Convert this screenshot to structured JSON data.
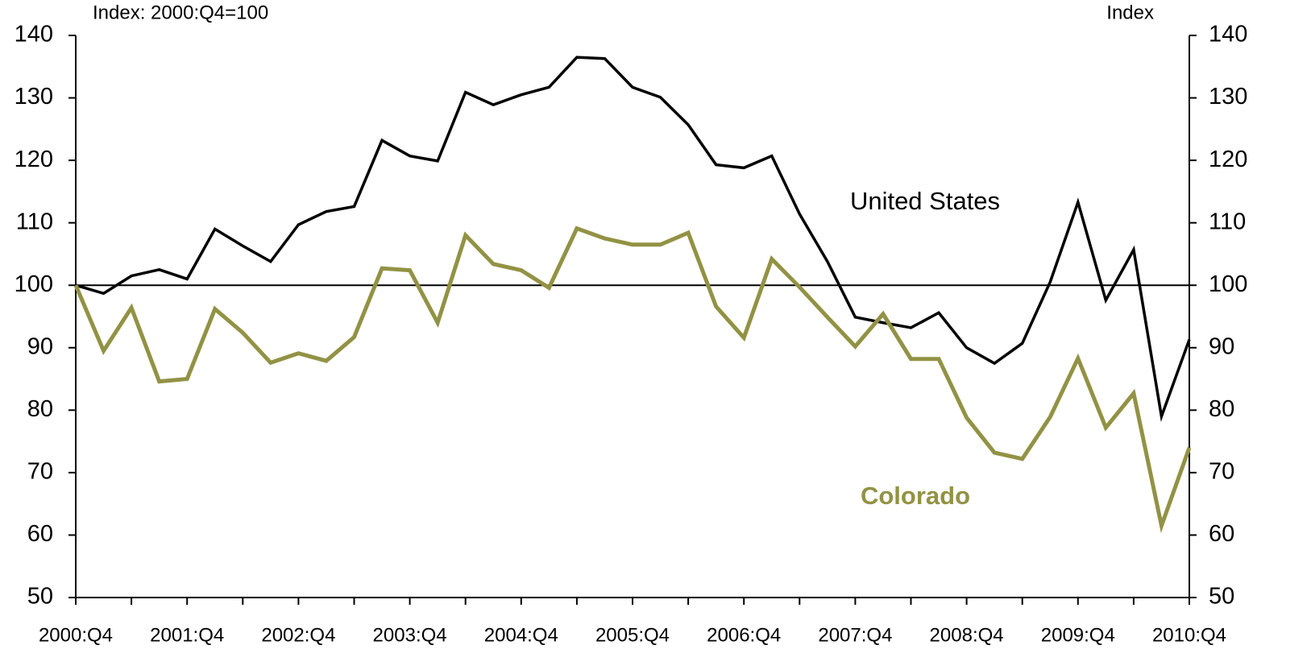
{
  "chart_data": {
    "type": "line",
    "y_label": "Index: 2000:Q4=100",
    "y2_label": "Index",
    "categories": [
      "2000:Q4",
      null,
      null,
      null,
      "2001:Q4",
      null,
      null,
      null,
      "2002:Q4",
      null,
      null,
      null,
      "2003:Q4",
      null,
      null,
      null,
      "2004:Q4",
      null,
      null,
      null,
      "2005:Q4",
      null,
      null,
      null,
      "2006:Q4",
      null,
      null,
      null,
      "2007:Q4",
      null,
      null,
      null,
      "2008:Q4",
      null,
      null,
      null,
      "2009:Q4",
      null,
      null,
      null,
      "2010:Q4"
    ],
    "series": [
      {
        "name": "United States",
        "color": "#000000",
        "width": 3.5,
        "values": [
          100,
          98.7,
          101.5,
          102.5,
          101,
          109,
          106.3,
          103.8,
          109.7,
          111.8,
          112.6,
          123.2,
          120.7,
          119.9,
          130.9,
          128.9,
          130.5,
          131.7,
          136.5,
          136.3,
          131.7,
          130.1,
          125.7,
          119.3,
          118.8,
          120.7,
          111.4,
          103.8,
          94.9,
          94,
          93.2,
          95.6,
          90,
          87.5,
          90.7,
          100.5,
          113.3,
          97.6,
          105.7,
          79,
          91.3
        ]
      },
      {
        "name": "Colorado",
        "color": "#929245",
        "width": 5,
        "values": [
          100,
          89.5,
          96.4,
          84.6,
          85,
          96.2,
          92.4,
          87.6,
          89.1,
          87.9,
          91.7,
          102.7,
          102.4,
          94,
          108,
          103.4,
          102.4,
          99.6,
          109.1,
          107.5,
          106.5,
          106.5,
          108.4,
          96.6,
          91.6,
          104.2,
          99.7,
          94.9,
          90.2,
          95.4,
          88.2,
          88.2,
          78.8,
          73.2,
          72.2,
          78.9,
          88.3,
          77.2,
          82.7,
          61.5,
          74
        ]
      }
    ],
    "ylim": [
      50,
      140
    ],
    "yticks": [
      50,
      60,
      70,
      80,
      90,
      100,
      110,
      120,
      130,
      140
    ],
    "y2lim": [
      50,
      140
    ],
    "y2ticks": [
      50,
      60,
      70,
      80,
      90,
      100,
      110,
      120,
      130,
      140
    ],
    "reference_line": 100,
    "grid": false
  }
}
